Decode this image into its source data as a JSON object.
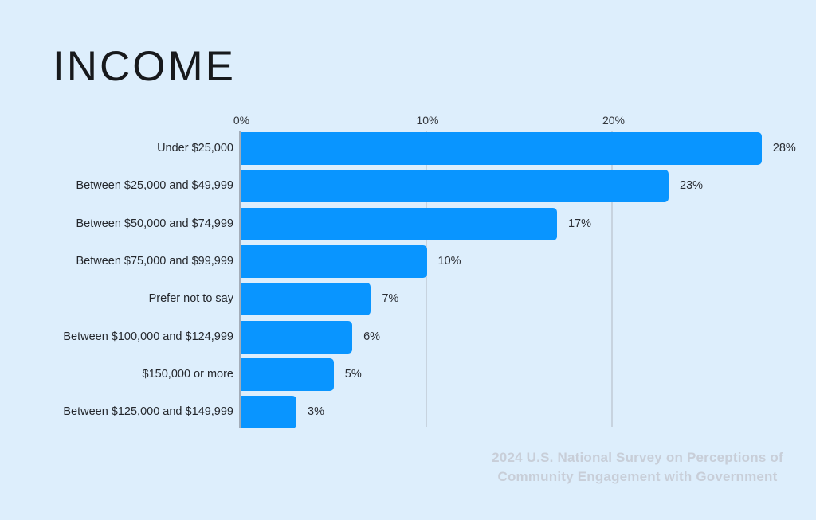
{
  "title": "INCOME",
  "footer": {
    "line1": "2024 U.S. National Survey on Perceptions of",
    "line2": "Community Engagement with Government"
  },
  "colors": {
    "background": "#ddeefc",
    "bar": "#0995ff",
    "gridline": "#c7d3df",
    "zero_axis": "#a3adb9",
    "title_text": "#17191c",
    "label_text": "#24272c",
    "footer_text": "#c8ced8"
  },
  "chart_data": {
    "type": "bar",
    "orientation": "horizontal",
    "title": "INCOME",
    "categories": [
      "Under $25,000",
      "Between $25,000 and $49,999",
      "Between $50,000 and $74,999",
      "Between $75,000 and $99,999",
      "Prefer not to say",
      "Between $100,000 and $124,999",
      "$150,000 or more",
      "Between $125,000 and $149,999"
    ],
    "values": [
      28,
      23,
      17,
      10,
      7,
      6,
      5,
      3
    ],
    "value_labels": [
      "28%",
      "23%",
      "17%",
      "10%",
      "7%",
      "6%",
      "5%",
      "3%"
    ],
    "x_ticks": [
      {
        "label": "0%",
        "value": 0
      },
      {
        "label": "10%",
        "value": 10
      },
      {
        "label": "20%",
        "value": 20
      }
    ],
    "xlim": [
      0,
      30
    ],
    "grid": "vertical",
    "legend": false,
    "source": "2024 U.S. National Survey on Perceptions of Community Engagement with Government"
  }
}
